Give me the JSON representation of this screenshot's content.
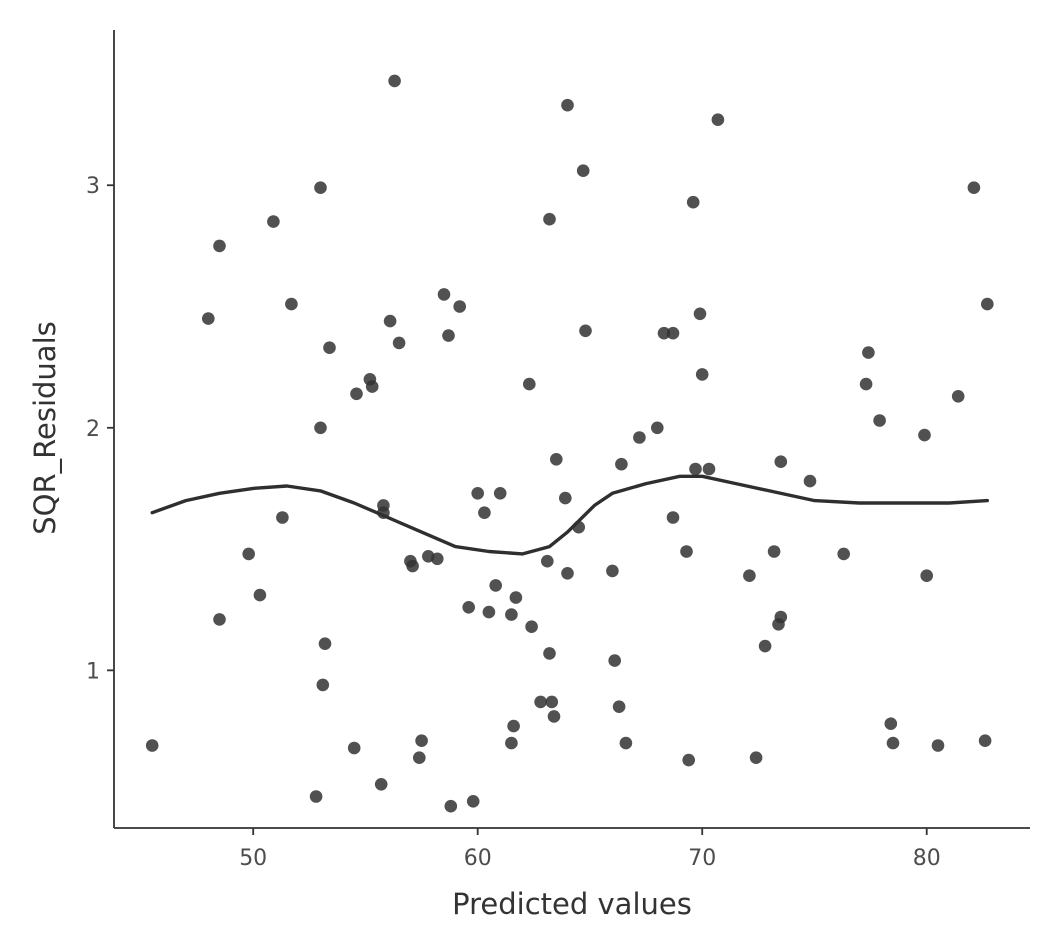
{
  "chart_data": {
    "type": "scatter",
    "title": "",
    "xlabel": "Predicted values",
    "ylabel": "SQR_Residuals",
    "xlim": [
      43.8,
      84.6
    ],
    "ylim": [
      0.35,
      3.64
    ],
    "xticks": [
      50,
      60,
      70,
      80
    ],
    "yticks": [
      1,
      2,
      3
    ],
    "xtick_labels": [
      "50",
      "60",
      "70",
      "80"
    ],
    "ytick_labels": [
      "1",
      "2",
      "3"
    ],
    "grid": false,
    "legend": "none",
    "colors": {
      "point": "#333333",
      "smooth": "#2f2f2f",
      "axis": "#333333"
    },
    "points": [
      [
        45.5,
        0.69
      ],
      [
        48.0,
        2.45
      ],
      [
        48.5,
        2.75
      ],
      [
        48.5,
        1.21
      ],
      [
        49.8,
        1.48
      ],
      [
        50.3,
        1.31
      ],
      [
        50.9,
        2.85
      ],
      [
        51.3,
        1.63
      ],
      [
        51.7,
        2.51
      ],
      [
        52.8,
        0.48
      ],
      [
        53.0,
        2.99
      ],
      [
        53.0,
        2.0
      ],
      [
        53.1,
        0.94
      ],
      [
        53.2,
        1.11
      ],
      [
        53.4,
        2.33
      ],
      [
        54.5,
        0.68
      ],
      [
        54.6,
        2.14
      ],
      [
        55.2,
        2.2
      ],
      [
        55.3,
        2.17
      ],
      [
        55.7,
        0.53
      ],
      [
        55.8,
        1.65
      ],
      [
        55.8,
        1.68
      ],
      [
        56.1,
        2.44
      ],
      [
        56.3,
        3.43
      ],
      [
        56.5,
        2.35
      ],
      [
        57.0,
        1.45
      ],
      [
        57.1,
        1.43
      ],
      [
        57.4,
        0.64
      ],
      [
        57.5,
        0.71
      ],
      [
        57.8,
        1.47
      ],
      [
        58.2,
        1.46
      ],
      [
        58.5,
        2.55
      ],
      [
        58.7,
        2.38
      ],
      [
        58.8,
        0.44
      ],
      [
        59.2,
        2.5
      ],
      [
        59.6,
        1.26
      ],
      [
        59.8,
        0.46
      ],
      [
        60.0,
        1.73
      ],
      [
        60.3,
        1.65
      ],
      [
        60.5,
        1.24
      ],
      [
        60.8,
        1.35
      ],
      [
        61.0,
        1.73
      ],
      [
        61.5,
        0.7
      ],
      [
        61.5,
        1.23
      ],
      [
        61.6,
        0.77
      ],
      [
        61.7,
        1.3
      ],
      [
        62.3,
        2.18
      ],
      [
        62.4,
        1.18
      ],
      [
        62.8,
        0.87
      ],
      [
        63.1,
        1.45
      ],
      [
        63.2,
        1.07
      ],
      [
        63.2,
        2.86
      ],
      [
        63.3,
        0.87
      ],
      [
        63.4,
        0.81
      ],
      [
        63.5,
        1.87
      ],
      [
        63.9,
        1.71
      ],
      [
        64.0,
        3.33
      ],
      [
        64.0,
        1.4
      ],
      [
        64.5,
        1.59
      ],
      [
        64.7,
        3.06
      ],
      [
        64.8,
        2.4
      ],
      [
        66.0,
        1.41
      ],
      [
        66.1,
        1.04
      ],
      [
        66.3,
        0.85
      ],
      [
        66.4,
        1.85
      ],
      [
        66.6,
        0.7
      ],
      [
        67.2,
        1.96
      ],
      [
        68.0,
        2.0
      ],
      [
        68.3,
        2.39
      ],
      [
        68.7,
        2.39
      ],
      [
        68.7,
        1.63
      ],
      [
        69.3,
        1.49
      ],
      [
        69.4,
        0.63
      ],
      [
        69.6,
        2.93
      ],
      [
        69.7,
        1.83
      ],
      [
        69.9,
        2.47
      ],
      [
        70.0,
        2.22
      ],
      [
        70.3,
        1.83
      ],
      [
        70.7,
        3.27
      ],
      [
        72.1,
        1.39
      ],
      [
        72.4,
        0.64
      ],
      [
        72.8,
        1.1
      ],
      [
        73.2,
        1.49
      ],
      [
        73.4,
        1.19
      ],
      [
        73.5,
        1.22
      ],
      [
        73.5,
        1.86
      ],
      [
        74.8,
        1.78
      ],
      [
        76.3,
        1.48
      ],
      [
        77.3,
        2.18
      ],
      [
        77.4,
        2.31
      ],
      [
        77.9,
        2.03
      ],
      [
        78.4,
        0.78
      ],
      [
        78.5,
        0.7
      ],
      [
        79.9,
        1.97
      ],
      [
        80.0,
        1.39
      ],
      [
        80.5,
        0.69
      ],
      [
        81.4,
        2.13
      ],
      [
        82.1,
        2.99
      ],
      [
        82.6,
        0.71
      ],
      [
        82.7,
        2.51
      ]
    ],
    "smooth": [
      [
        45.5,
        1.65
      ],
      [
        47.0,
        1.7
      ],
      [
        48.5,
        1.73
      ],
      [
        50.0,
        1.75
      ],
      [
        51.5,
        1.76
      ],
      [
        53.0,
        1.74
      ],
      [
        54.5,
        1.69
      ],
      [
        56.0,
        1.63
      ],
      [
        57.5,
        1.57
      ],
      [
        59.0,
        1.51
      ],
      [
        60.5,
        1.49
      ],
      [
        62.0,
        1.48
      ],
      [
        63.2,
        1.51
      ],
      [
        64.0,
        1.57
      ],
      [
        65.2,
        1.68
      ],
      [
        66.0,
        1.73
      ],
      [
        67.5,
        1.77
      ],
      [
        69.0,
        1.8
      ],
      [
        70.0,
        1.8
      ],
      [
        71.5,
        1.77
      ],
      [
        73.0,
        1.74
      ],
      [
        75.0,
        1.7
      ],
      [
        77.0,
        1.69
      ],
      [
        79.0,
        1.69
      ],
      [
        81.0,
        1.69
      ],
      [
        82.7,
        1.7
      ]
    ]
  }
}
